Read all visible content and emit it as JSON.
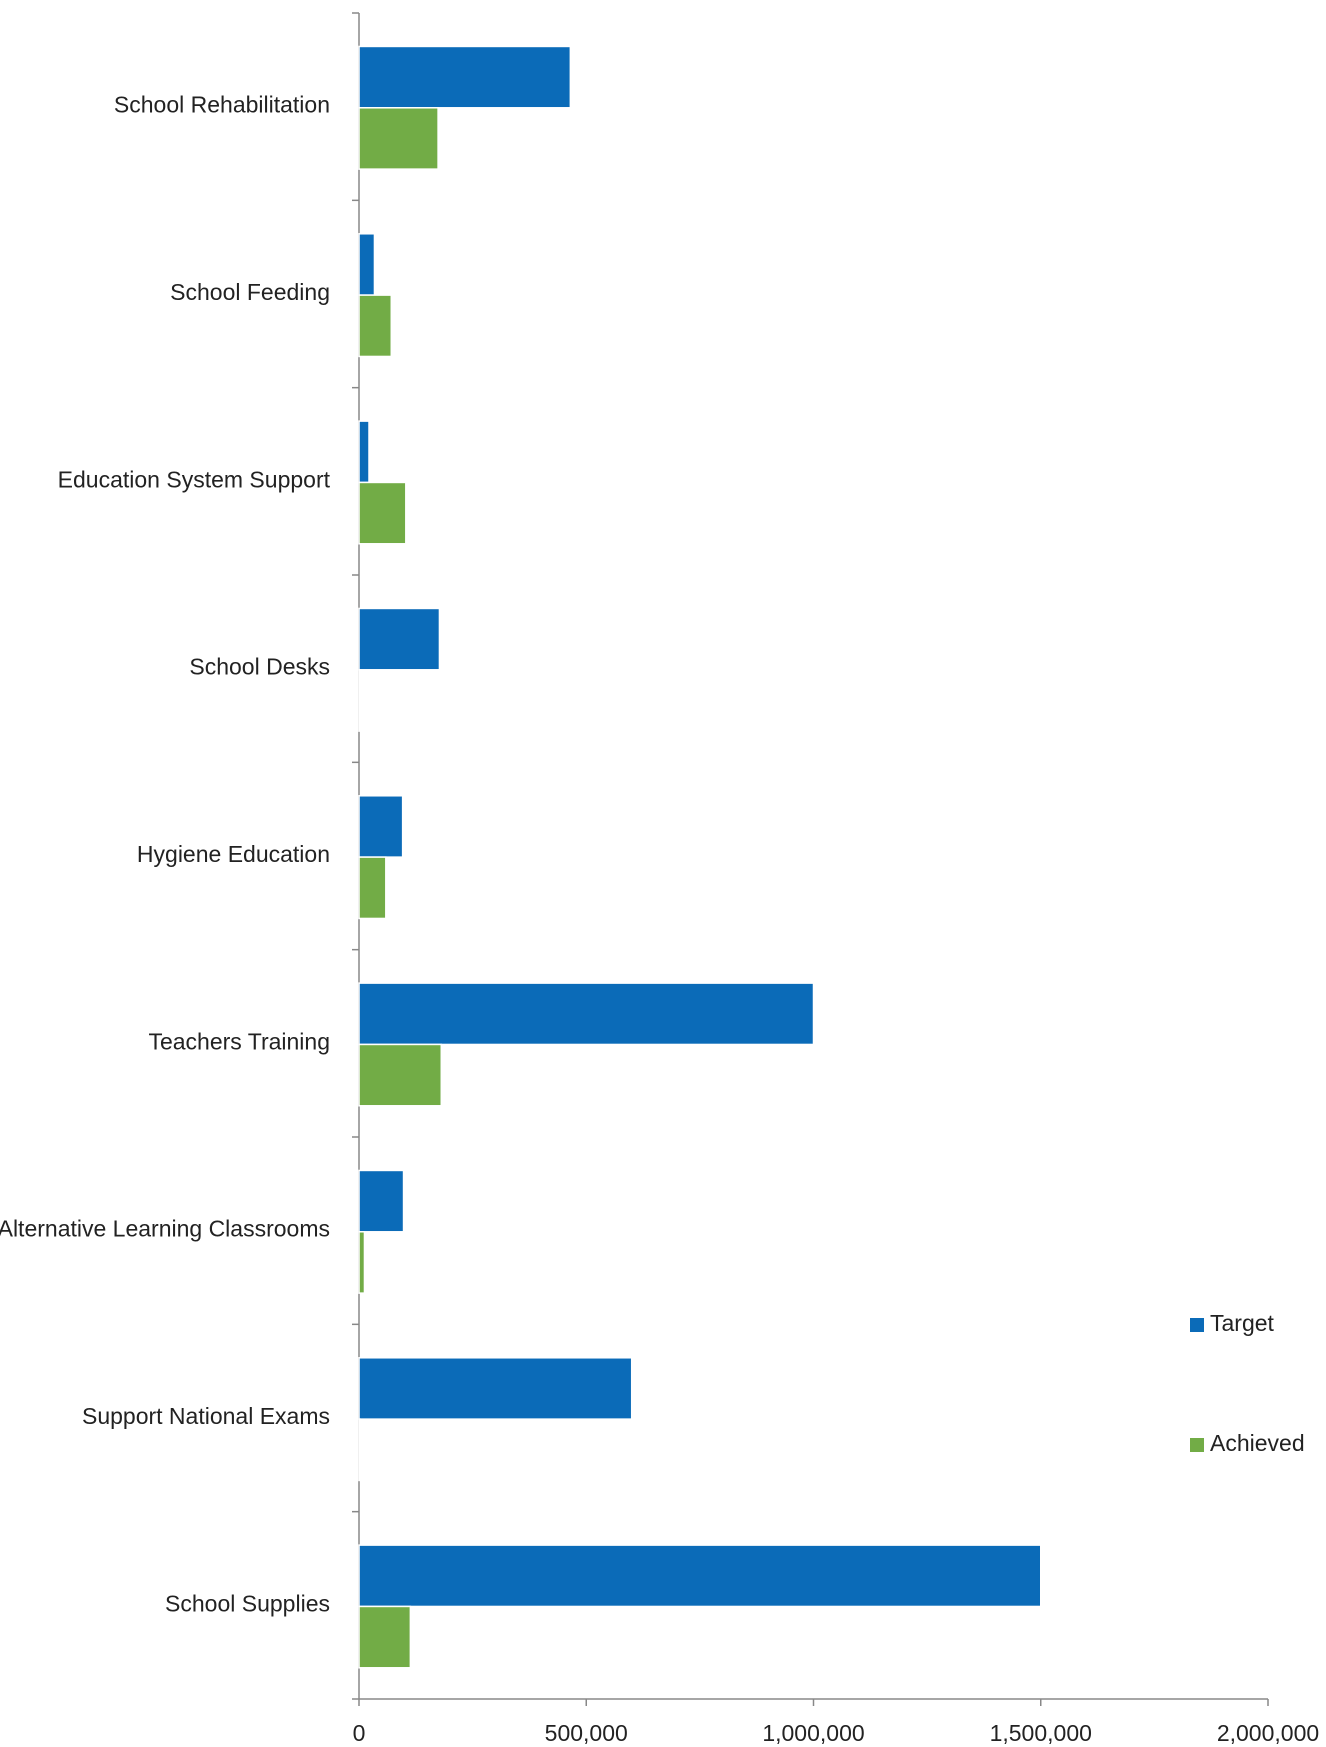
{
  "chart_data": {
    "type": "hbar",
    "categories": [
      "School Rehabilitation",
      "School Feeding",
      "Education System Support",
      "School Desks",
      "Hygiene Education",
      "Teachers Training",
      "Alternative Learning Classrooms",
      "Support National Exams",
      "School Supplies"
    ],
    "series": [
      {
        "name": "Target",
        "color": "#0b6bb8",
        "values": [
          465000,
          34000,
          22000,
          177000,
          96000,
          1000000,
          98000,
          600000,
          1500000
        ]
      },
      {
        "name": "Achieved",
        "color": "#72ac46",
        "values": [
          174000,
          71000,
          103000,
          1000,
          59000,
          181000,
          12000,
          2000,
          113000
        ]
      }
    ],
    "xlim": [
      0,
      2000000
    ],
    "xticks": [
      0,
      {
        "value": 500000,
        "label": "500,000"
      },
      {
        "value": 1000000,
        "label": "1,000,000"
      },
      {
        "value": 1500000,
        "label": "1,500,000"
      },
      {
        "value": 2000000,
        "label": "2,000,000"
      }
    ],
    "legend": "right"
  }
}
